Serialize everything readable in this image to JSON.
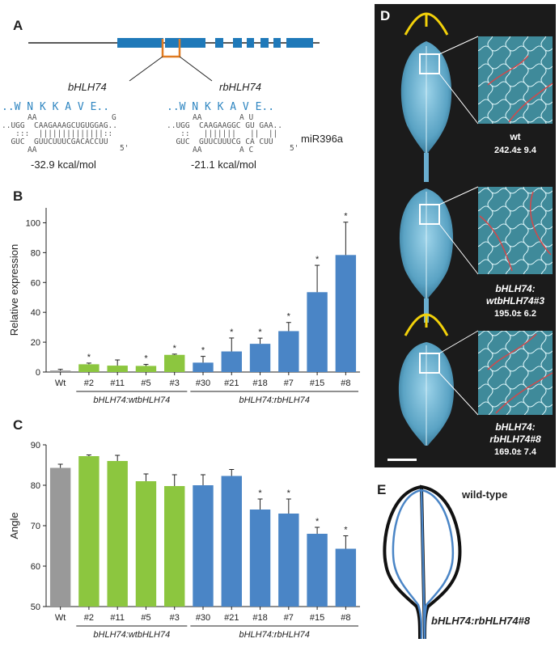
{
  "panels": {
    "a": "A",
    "b": "B",
    "c": "C",
    "d": "D",
    "e": "E"
  },
  "panel_a": {
    "gene_left": "bHLH74",
    "gene_right": "rbHLH74",
    "aa_left": "..W N K K A V E..",
    "aa_right": "..W N K K A V E..",
    "left_duplex": {
      "top_loop": "AA",
      "top_tail": "G",
      "top": "..UGG  CAAGAAAGCUGUGGAG..",
      "pairs": "   :::  ||||||||||||||::",
      "bottom": "  GUC  GUUCUUUCGACACCUU",
      "bottom_loop": "AA",
      "five_prime": "5'"
    },
    "right_duplex": {
      "top_loop": "AA",
      "top_bulge": "A U",
      "top": "..UGG  CAAGAAGGC GU GAA..",
      "pairs": "   ::   |||||||   ||  ||",
      "bottom": "  GUC  GUUCUUUCG CA CUU",
      "bottom_loop": "AA",
      "bottom_bulge": "A C",
      "five_prime": "5'"
    },
    "mirna_label": "miR396a",
    "kcal_left": "-32.9 kcal/mol",
    "kcal_right": "-21.1 kcal/mol"
  },
  "chart_data": [
    {
      "type": "bar",
      "panel": "B",
      "title": "",
      "xlabel": "",
      "ylabel": "Relative expression",
      "ylim": [
        0,
        110
      ],
      "yticks": [
        0,
        20,
        40,
        60,
        80,
        100
      ],
      "categories": [
        "Wt",
        "#2",
        "#11",
        "#5",
        "#3",
        "#30",
        "#21",
        "#18",
        "#7",
        "#15",
        "#8"
      ],
      "values": [
        1,
        5.2,
        4.3,
        4.1,
        11.5,
        6.3,
        13.8,
        18.9,
        27.4,
        53.5,
        78.4
      ],
      "errors": [
        0.8,
        0.8,
        3.8,
        1.0,
        0.5,
        4.2,
        9.0,
        3.8,
        5.8,
        18.0,
        22.0
      ],
      "significant": [
        false,
        true,
        false,
        true,
        true,
        true,
        true,
        true,
        true,
        true,
        true
      ],
      "colors": [
        "#999999",
        "#8cc63f",
        "#8cc63f",
        "#8cc63f",
        "#8cc63f",
        "#4a85c6",
        "#4a85c6",
        "#4a85c6",
        "#4a85c6",
        "#4a85c6",
        "#4a85c6"
      ],
      "groups": [
        {
          "label": "bHLH74:wtbHLH74",
          "from": 1,
          "to": 4
        },
        {
          "label": "bHLH74:rbHLH74",
          "from": 5,
          "to": 10
        }
      ]
    },
    {
      "type": "bar",
      "panel": "C",
      "title": "",
      "xlabel": "",
      "ylabel": "Angle",
      "ylim": [
        50,
        90
      ],
      "yticks": [
        50,
        60,
        70,
        80,
        90
      ],
      "categories": [
        "Wt",
        "#2",
        "#11",
        "#5",
        "#3",
        "#30",
        "#21",
        "#18",
        "#7",
        "#15",
        "#8"
      ],
      "values": [
        84.3,
        87.2,
        86.0,
        81.0,
        79.8,
        80.0,
        82.3,
        74.0,
        73.0,
        68.0,
        64.3
      ],
      "errors": [
        0.9,
        0.3,
        1.4,
        1.8,
        2.8,
        2.6,
        1.6,
        2.6,
        3.6,
        1.6,
        3.2
      ],
      "significant": [
        false,
        false,
        false,
        false,
        false,
        false,
        false,
        true,
        true,
        true,
        true
      ],
      "colors": [
        "#999999",
        "#8cc63f",
        "#8cc63f",
        "#8cc63f",
        "#8cc63f",
        "#4a85c6",
        "#4a85c6",
        "#4a85c6",
        "#4a85c6",
        "#4a85c6",
        "#4a85c6"
      ],
      "groups": [
        {
          "label": "bHLH74:wtbHLH74",
          "from": 1,
          "to": 4
        },
        {
          "label": "bHLH74:rbHLH74",
          "from": 5,
          "to": 10
        }
      ]
    }
  ],
  "panel_d": {
    "leaves": [
      {
        "name": "wt",
        "value": "242.4± 9.4",
        "angle_marker": true
      },
      {
        "name": "bHLH74:\nwtbHLH74#3",
        "value": "195.0± 6.2",
        "angle_marker": false
      },
      {
        "name": "bHLH74:\nrbHLH74#8",
        "value": "169.0± 7.4",
        "angle_marker": true
      }
    ],
    "marker_color": "#f2d10a",
    "vein_highlight_color": "#d4484a"
  },
  "panel_e": {
    "label_top": "wild-type",
    "label_bottom": "bHLH74:rbHLH74#8",
    "wt_color": "#111111",
    "mutant_color": "#4a85c6"
  },
  "star_symbol": "*"
}
